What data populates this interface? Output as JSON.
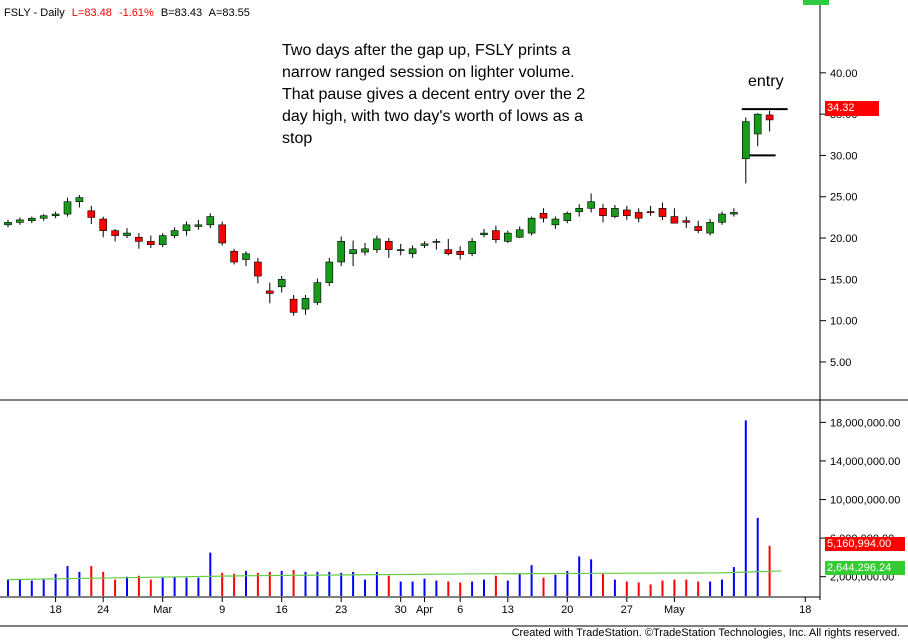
{
  "header": {
    "symbol": "FSLY - Daily",
    "last": "L=83.48",
    "change": "-1.61%",
    "bid": "B=83.43",
    "ask": "A=83.55"
  },
  "annotation": {
    "text": "Two days after the gap up, FSLY prints a narrow ranged session on lighter volume. That pause gives a decent entry over the 2 day high, with two day's worth of lows as a stop",
    "entry_label": "entry"
  },
  "price_marker": "34.32",
  "volume_markers": {
    "volume": "5,160,994.00",
    "average": "2,644,296.24"
  },
  "footer": "Created with TradeStation. ©TradeStation Technologies, Inc. All rights reserved.",
  "colors": {
    "up": "#1a9a1a",
    "down": "#ff0000",
    "vol_up": "#0000ff",
    "vol_down": "#ff0000",
    "vol_avg": "#66cc44"
  },
  "chart_data": {
    "type": "candlestick",
    "price_ticks": [
      "40.00",
      "35.00",
      "30.00",
      "25.00",
      "20.00",
      "15.00",
      "10.00",
      "5.00"
    ],
    "volume_ticks": [
      "18,000,000.00",
      "14,000,000.00",
      "10,000,000.00",
      "6,000,000.00",
      "2,000,000.00"
    ],
    "x_tick_labels": [
      "18",
      "24",
      "Mar",
      "9",
      "16",
      "23",
      "30",
      "Apr",
      "6",
      "13",
      "20",
      "27",
      "May",
      "18"
    ],
    "price_ylim": [
      1,
      47
    ],
    "volume_ylim": [
      0,
      19800000
    ],
    "entry_level": 35.6,
    "stop_level": 30.0,
    "candles": [
      [
        21.6,
        22.2,
        21.3,
        21.9,
        1700000
      ],
      [
        21.9,
        22.5,
        21.6,
        22.2,
        1700000
      ],
      [
        22.1,
        22.6,
        21.8,
        22.4,
        1600000
      ],
      [
        22.4,
        22.9,
        22.1,
        22.7,
        1700000
      ],
      [
        22.7,
        23.2,
        22.4,
        22.9,
        2300000
      ],
      [
        22.9,
        24.9,
        22.6,
        24.4,
        3100000
      ],
      [
        24.4,
        25.2,
        23.7,
        24.9,
        2500000
      ],
      [
        23.3,
        23.9,
        21.7,
        22.5,
        3100000
      ],
      [
        22.3,
        22.6,
        20.1,
        20.9,
        2500000
      ],
      [
        20.9,
        21.1,
        19.6,
        20.3,
        1700000
      ],
      [
        20.3,
        21.2,
        20.0,
        20.6,
        2000000
      ],
      [
        20.1,
        20.6,
        18.7,
        19.6,
        2100000
      ],
      [
        19.6,
        20.3,
        18.8,
        19.2,
        1700000
      ],
      [
        19.2,
        20.6,
        18.9,
        20.3,
        1900000
      ],
      [
        20.3,
        21.3,
        20.0,
        20.9,
        2000000
      ],
      [
        20.9,
        22.0,
        20.3,
        21.6,
        1900000
      ],
      [
        21.4,
        22.2,
        21.0,
        21.6,
        1900000
      ],
      [
        21.6,
        23.0,
        21.2,
        22.6,
        4500000
      ],
      [
        21.6,
        22.0,
        19.1,
        19.4,
        2400000
      ],
      [
        18.4,
        18.7,
        16.8,
        17.1,
        2300000
      ],
      [
        17.4,
        18.4,
        16.6,
        18.1,
        2600000
      ],
      [
        17.1,
        17.6,
        14.5,
        15.4,
        2400000
      ],
      [
        13.6,
        14.6,
        12.1,
        13.3,
        2500000
      ],
      [
        14.1,
        15.4,
        13.4,
        15.0,
        2600000
      ],
      [
        12.6,
        13.1,
        10.6,
        11.0,
        2700000
      ],
      [
        11.4,
        13.1,
        10.7,
        12.7,
        2500000
      ],
      [
        12.2,
        15.1,
        11.9,
        14.6,
        2500000
      ],
      [
        14.6,
        17.6,
        14.2,
        17.1,
        2500000
      ],
      [
        17.1,
        20.2,
        16.6,
        19.6,
        2400000
      ],
      [
        18.1,
        19.7,
        16.6,
        18.6,
        2500000
      ],
      [
        18.3,
        19.4,
        17.9,
        18.7,
        1700000
      ],
      [
        18.6,
        20.3,
        18.2,
        19.9,
        2500000
      ],
      [
        19.6,
        20.0,
        17.6,
        18.6,
        2100000
      ],
      [
        18.6,
        19.3,
        17.9,
        18.6,
        1500000
      ],
      [
        18.1,
        19.1,
        17.6,
        18.7,
        1500000
      ],
      [
        19.1,
        19.6,
        18.8,
        19.3,
        1800000
      ],
      [
        19.5,
        19.9,
        18.6,
        19.6,
        1600000
      ],
      [
        18.6,
        19.9,
        17.9,
        18.1,
        1500000
      ],
      [
        18.4,
        19.0,
        17.4,
        18.0,
        1400000
      ],
      [
        18.1,
        20.0,
        17.8,
        19.6,
        1500000
      ],
      [
        20.4,
        21.1,
        20.1,
        20.6,
        1700000
      ],
      [
        20.9,
        21.5,
        19.4,
        19.8,
        2100000
      ],
      [
        19.6,
        20.9,
        19.4,
        20.6,
        1600000
      ],
      [
        20.1,
        21.4,
        20.0,
        21.0,
        2300000
      ],
      [
        20.6,
        22.6,
        20.3,
        22.4,
        3200000
      ],
      [
        23.0,
        23.6,
        21.9,
        22.4,
        1900000
      ],
      [
        21.6,
        22.6,
        21.1,
        22.3,
        2200000
      ],
      [
        22.1,
        23.2,
        21.8,
        23.0,
        2600000
      ],
      [
        23.2,
        24.1,
        22.6,
        23.6,
        4100000
      ],
      [
        23.6,
        25.4,
        23.1,
        24.4,
        3800000
      ],
      [
        23.6,
        24.1,
        21.9,
        22.7,
        2300000
      ],
      [
        22.6,
        24.0,
        22.4,
        23.6,
        1700000
      ],
      [
        23.4,
        23.9,
        22.2,
        22.7,
        1500000
      ],
      [
        23.1,
        23.6,
        21.9,
        22.4,
        1400000
      ],
      [
        23.2,
        23.9,
        22.7,
        23.1,
        1200000
      ],
      [
        23.6,
        24.3,
        22.2,
        22.6,
        1600000
      ],
      [
        22.6,
        23.6,
        21.9,
        21.8,
        1700000
      ],
      [
        22.1,
        22.6,
        21.2,
        21.9,
        1700000
      ],
      [
        21.4,
        22.1,
        20.6,
        20.9,
        1500000
      ],
      [
        20.6,
        22.3,
        20.3,
        21.9,
        1500000
      ],
      [
        21.9,
        23.2,
        21.6,
        22.9,
        1700000
      ],
      [
        22.9,
        23.6,
        22.6,
        23.1,
        3000000
      ],
      [
        29.6,
        34.6,
        26.6,
        34.1,
        18200000
      ],
      [
        32.6,
        35.1,
        31.1,
        35.0,
        8100000
      ],
      [
        34.9,
        35.4,
        32.9,
        34.3,
        5200000
      ]
    ],
    "volume_avg": [
      [
        0,
        1700000
      ],
      [
        10,
        1900000
      ],
      [
        20,
        2100000
      ],
      [
        30,
        2200000
      ],
      [
        40,
        2300000
      ],
      [
        50,
        2350000
      ],
      [
        60,
        2400000
      ],
      [
        65,
        2600000
      ]
    ]
  }
}
